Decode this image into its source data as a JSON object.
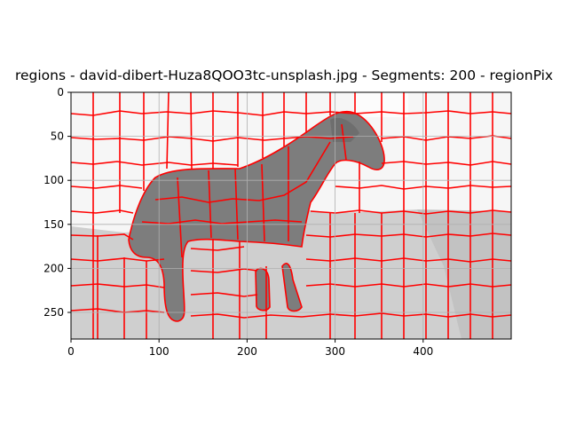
{
  "figure": {
    "title": "regions - david-dibert-Huza8QOO3tc-unsplash.jpg - Segments: 200 - regionPix",
    "x_ticks": [
      "0",
      "100",
      "200",
      "300",
      "400"
    ],
    "y_ticks": [
      "0",
      "50",
      "100",
      "150",
      "200",
      "250"
    ],
    "grid": true,
    "colors": {
      "boundary": "#ff0000",
      "sky": "#f5f5f5",
      "ground": "#cfcfcf",
      "horse": "#7e7e7e",
      "grid": "#b0b0b0"
    }
  }
}
